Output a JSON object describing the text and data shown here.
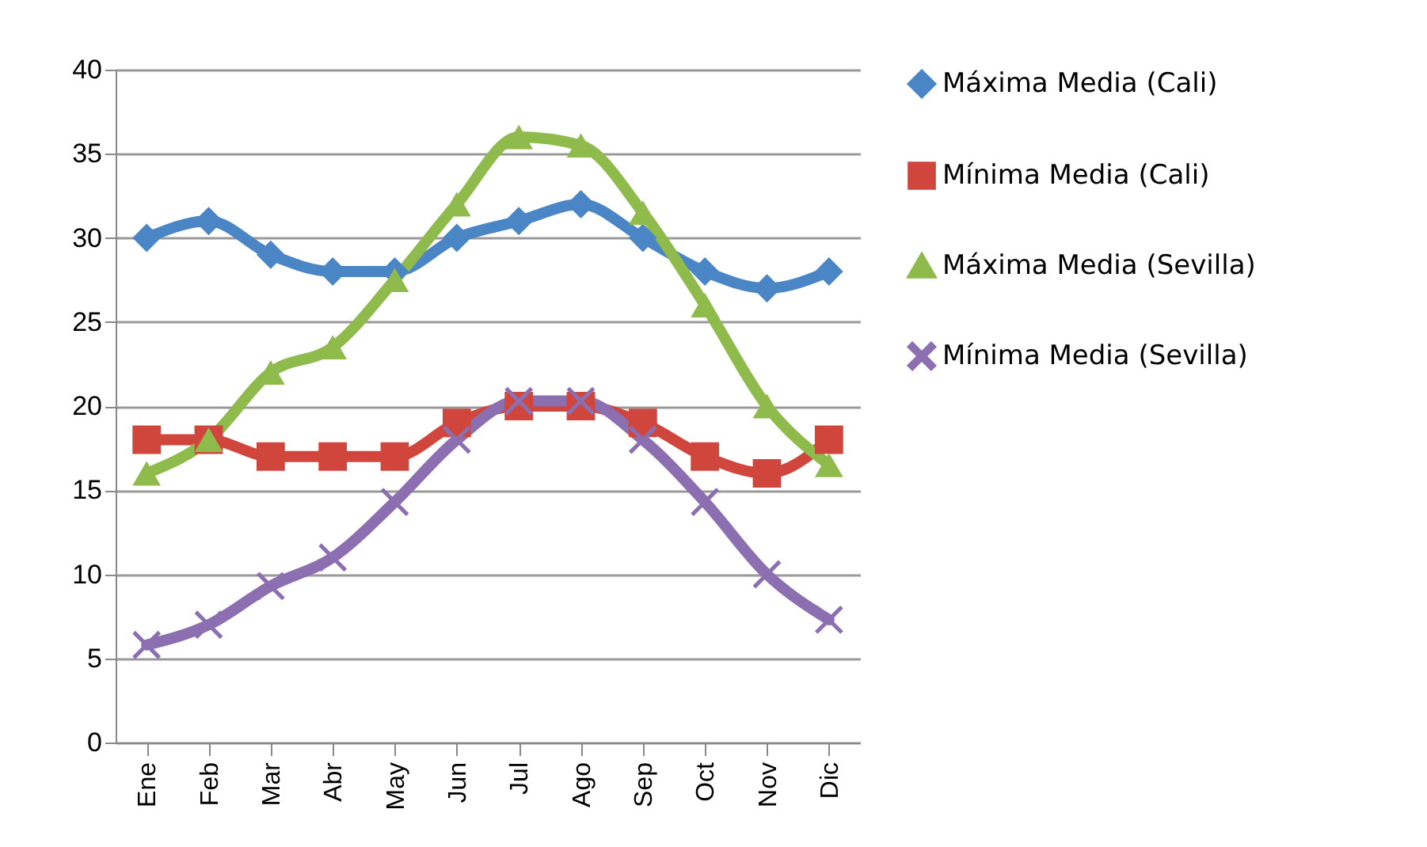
{
  "chart_data": {
    "type": "line",
    "categories": [
      "Ene",
      "Feb",
      "Mar",
      "Abr",
      "May",
      "Jun",
      "Jul",
      "Ago",
      "Sep",
      "Oct",
      "Nov",
      "Dic"
    ],
    "series": [
      {
        "name": "Máxima Media (Cali)",
        "color": "#4a86c5",
        "marker": "diamond",
        "values": [
          30,
          31,
          29,
          28,
          28,
          30,
          31,
          32,
          30,
          28,
          27,
          28
        ]
      },
      {
        "name": "Mínima Media (Cali)",
        "color": "#d0463c",
        "marker": "square",
        "values": [
          18,
          18,
          17,
          17,
          17,
          19,
          20,
          20,
          19,
          17,
          16,
          18
        ]
      },
      {
        "name": "Máxima Media (Sevilla)",
        "color": "#8fbb4c",
        "marker": "triangle",
        "values": [
          16,
          18,
          22,
          23.5,
          27.5,
          32,
          36,
          35.5,
          31.5,
          26,
          20,
          16.5
        ]
      },
      {
        "name": "Mínima Media (Sevilla)",
        "color": "#8b6fb0",
        "marker": "cross",
        "values": [
          5.8,
          7,
          9.3,
          11,
          14.3,
          18,
          20.3,
          20.3,
          18,
          14.3,
          10,
          7.3
        ]
      }
    ],
    "ylim": [
      0,
      40
    ],
    "yticks": [
      0,
      5,
      10,
      15,
      20,
      25,
      30,
      35,
      40
    ],
    "grid": "y",
    "legend": "right"
  }
}
